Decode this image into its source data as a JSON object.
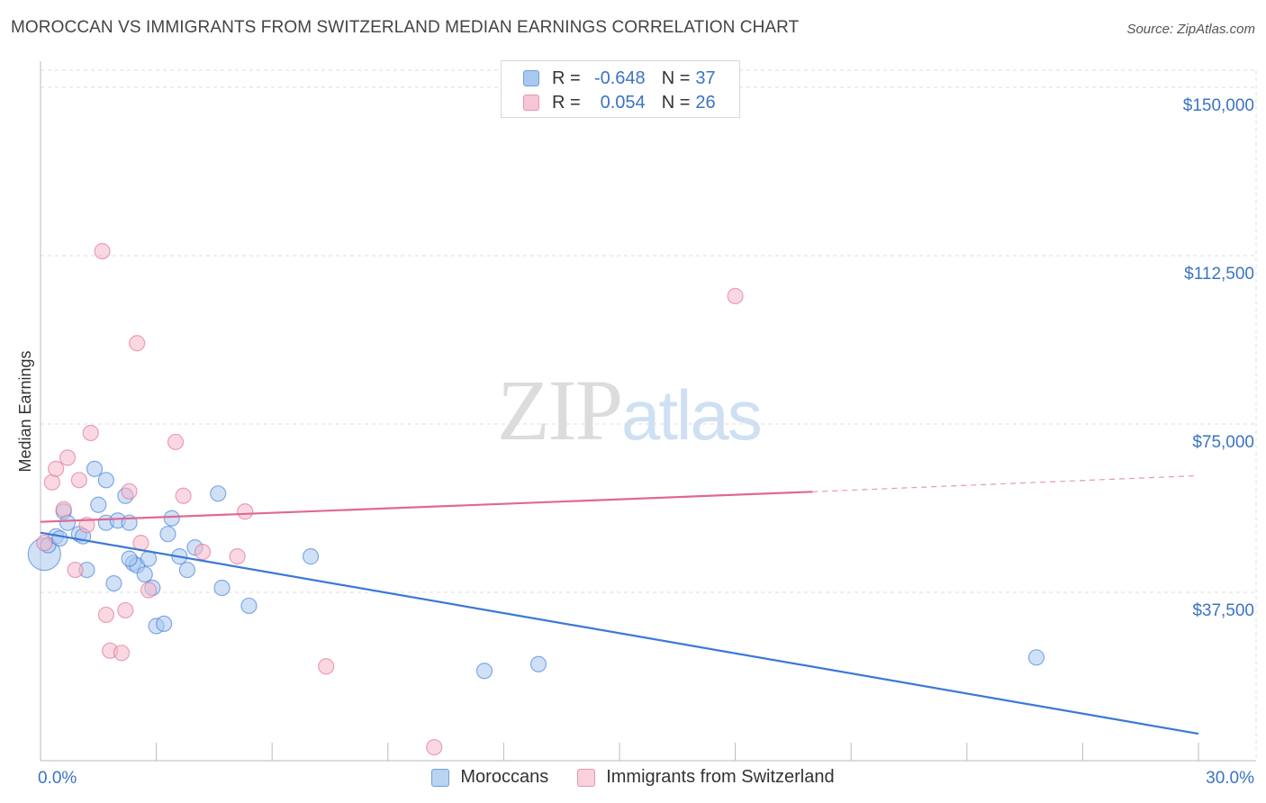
{
  "title": "MOROCCAN VS IMMIGRANTS FROM SWITZERLAND MEDIAN EARNINGS CORRELATION CHART",
  "source": "Source: ZipAtlas.com",
  "watermark": {
    "zip": "ZIP",
    "atlas": "atlas"
  },
  "legend": {
    "rows": [
      {
        "r_label": "R =",
        "r_value": "-0.648",
        "n_label": "N =",
        "n_value": "37",
        "color": "#a9c8ef"
      },
      {
        "r_label": "R =",
        "r_value": "0.054",
        "n_label": "N =",
        "n_value": "26",
        "color": "#f6b8cb"
      }
    ]
  },
  "bottom_legend": [
    {
      "label": "Moroccans",
      "color": "#a9c8ef"
    },
    {
      "label": "Immigrants from Switzerland",
      "color": "#f6b8cb"
    }
  ],
  "chart_data": {
    "type": "scatter",
    "title": "MOROCCAN VS IMMIGRANTS FROM SWITZERLAND MEDIAN EARNINGS CORRELATION CHART",
    "xlabel": "",
    "ylabel": "Median Earnings",
    "xlim": [
      0,
      30
    ],
    "ylim": [
      0,
      155000
    ],
    "x_tick_labels": [
      "0.0%",
      "30.0%"
    ],
    "y_ticks": [
      37500,
      75000,
      112500,
      150000
    ],
    "y_tick_labels": [
      "$37,500",
      "$75,000",
      "$112,500",
      "$150,000"
    ],
    "grid": true,
    "series": [
      {
        "name": "Moroccans",
        "color": "#3b78d8",
        "fill": "#a9c8ef",
        "trend": {
          "x0": 0,
          "y0": 50800,
          "x1": 30,
          "y1": 6000
        },
        "points": [
          [
            0.1,
            46000
          ],
          [
            0.2,
            48000
          ],
          [
            0.4,
            50000
          ],
          [
            0.5,
            49500
          ],
          [
            0.6,
            55500
          ],
          [
            0.7,
            53000
          ],
          [
            1.0,
            50500
          ],
          [
            1.1,
            50000
          ],
          [
            1.2,
            42500
          ],
          [
            1.4,
            65000
          ],
          [
            1.5,
            57000
          ],
          [
            1.7,
            62500
          ],
          [
            1.7,
            53000
          ],
          [
            1.9,
            39500
          ],
          [
            2.0,
            53500
          ],
          [
            2.2,
            59000
          ],
          [
            2.3,
            53000
          ],
          [
            2.4,
            44000
          ],
          [
            2.5,
            43500
          ],
          [
            2.7,
            41500
          ],
          [
            2.8,
            45000
          ],
          [
            2.9,
            38500
          ],
          [
            3.0,
            30000
          ],
          [
            3.2,
            30500
          ],
          [
            3.3,
            50500
          ],
          [
            3.4,
            54000
          ],
          [
            3.6,
            45500
          ],
          [
            3.8,
            42500
          ],
          [
            4.0,
            47500
          ],
          [
            4.6,
            59500
          ],
          [
            4.7,
            38500
          ],
          [
            5.4,
            34500
          ],
          [
            7.0,
            45500
          ],
          [
            11.5,
            20000
          ],
          [
            12.9,
            21500
          ],
          [
            25.8,
            23000
          ],
          [
            2.3,
            45000
          ]
        ]
      },
      {
        "name": "Immigrants from Switzerland",
        "color": "#e0698f",
        "fill": "#f6b8cb",
        "trend": {
          "x0": 0,
          "y0": 53200,
          "x1": 20,
          "y1": 59900,
          "dash_x1": 30,
          "dash_y1": 63500
        },
        "points": [
          [
            0.1,
            48500
          ],
          [
            0.3,
            62000
          ],
          [
            0.4,
            65000
          ],
          [
            0.6,
            56000
          ],
          [
            0.7,
            67500
          ],
          [
            0.9,
            42500
          ],
          [
            1.0,
            62500
          ],
          [
            1.2,
            52500
          ],
          [
            1.3,
            73000
          ],
          [
            1.6,
            113500
          ],
          [
            1.7,
            32500
          ],
          [
            1.8,
            24500
          ],
          [
            2.1,
            24000
          ],
          [
            2.2,
            33500
          ],
          [
            2.3,
            60000
          ],
          [
            2.5,
            93000
          ],
          [
            2.6,
            48500
          ],
          [
            2.8,
            38000
          ],
          [
            3.5,
            71000
          ],
          [
            3.7,
            59000
          ],
          [
            4.2,
            46500
          ],
          [
            5.1,
            45500
          ],
          [
            5.3,
            55500
          ],
          [
            7.4,
            21000
          ],
          [
            10.2,
            3000
          ],
          [
            18.0,
            103500
          ]
        ]
      }
    ]
  }
}
